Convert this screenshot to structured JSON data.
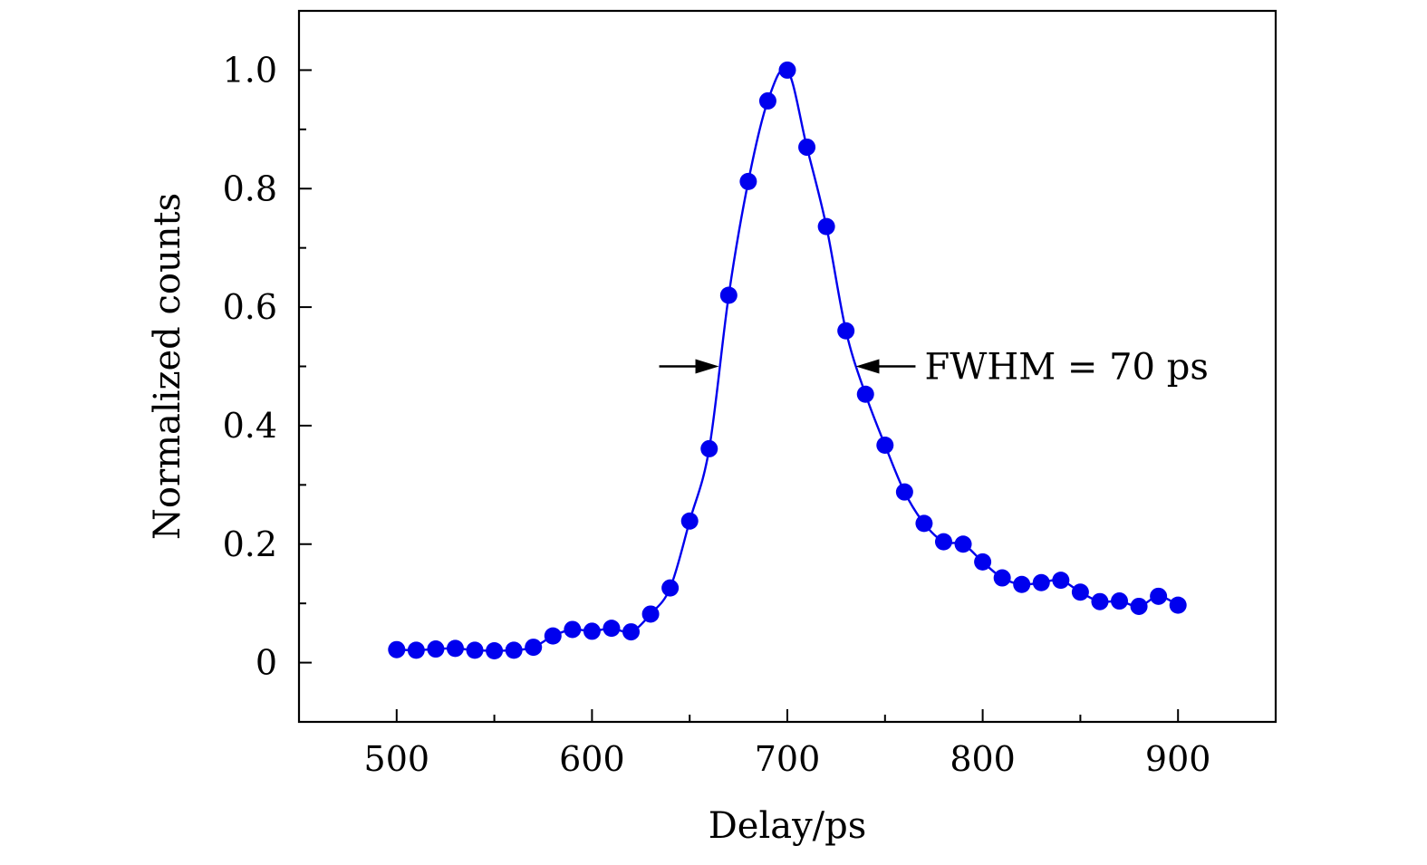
{
  "colors": {
    "series": "#0000ee",
    "axes": "#000000",
    "background": "#ffffff"
  },
  "chart_data": {
    "type": "line",
    "title": "",
    "xlabel": "Delay/ps",
    "ylabel": "Normalized counts",
    "xlim": [
      450,
      950
    ],
    "ylim": [
      -0.1,
      1.1
    ],
    "xticks": [
      500,
      600,
      700,
      800,
      900
    ],
    "yticks": [
      0,
      0.2,
      0.4,
      0.6,
      0.8,
      1.0
    ],
    "xtick_labels": [
      "500",
      "600",
      "700",
      "800",
      "900"
    ],
    "ytick_labels": [
      "0",
      "0.2",
      "0.4",
      "0.6",
      "0.8",
      "1.0"
    ],
    "x_minor_step": 50,
    "y_minor_step": 0.1,
    "grid": false,
    "legend": "none",
    "series": [
      {
        "name": "Normalized counts",
        "marker": "circle",
        "line": true,
        "x": [
          500,
          510,
          520,
          530,
          540,
          550,
          560,
          570,
          580,
          590,
          600,
          610,
          620,
          630,
          640,
          650,
          660,
          670,
          680,
          690,
          700,
          710,
          720,
          730,
          740,
          750,
          760,
          770,
          780,
          790,
          800,
          810,
          820,
          830,
          840,
          850,
          860,
          870,
          880,
          890,
          900
        ],
        "y": [
          0.022,
          0.021,
          0.023,
          0.024,
          0.021,
          0.02,
          0.021,
          0.026,
          0.045,
          0.056,
          0.053,
          0.058,
          0.052,
          0.082,
          0.126,
          0.239,
          0.361,
          0.62,
          0.812,
          0.948,
          1.0,
          0.87,
          0.736,
          0.56,
          0.453,
          0.367,
          0.288,
          0.235,
          0.204,
          0.2,
          0.17,
          0.143,
          0.132,
          0.135,
          0.139,
          0.119,
          0.103,
          0.104,
          0.095,
          0.112,
          0.097
        ]
      }
    ],
    "annotations": [
      {
        "text": "FWHM = 70 ps",
        "y": 0.5,
        "left_arrow_tip_x": 665,
        "right_arrow_tip_x": 735
      }
    ]
  }
}
